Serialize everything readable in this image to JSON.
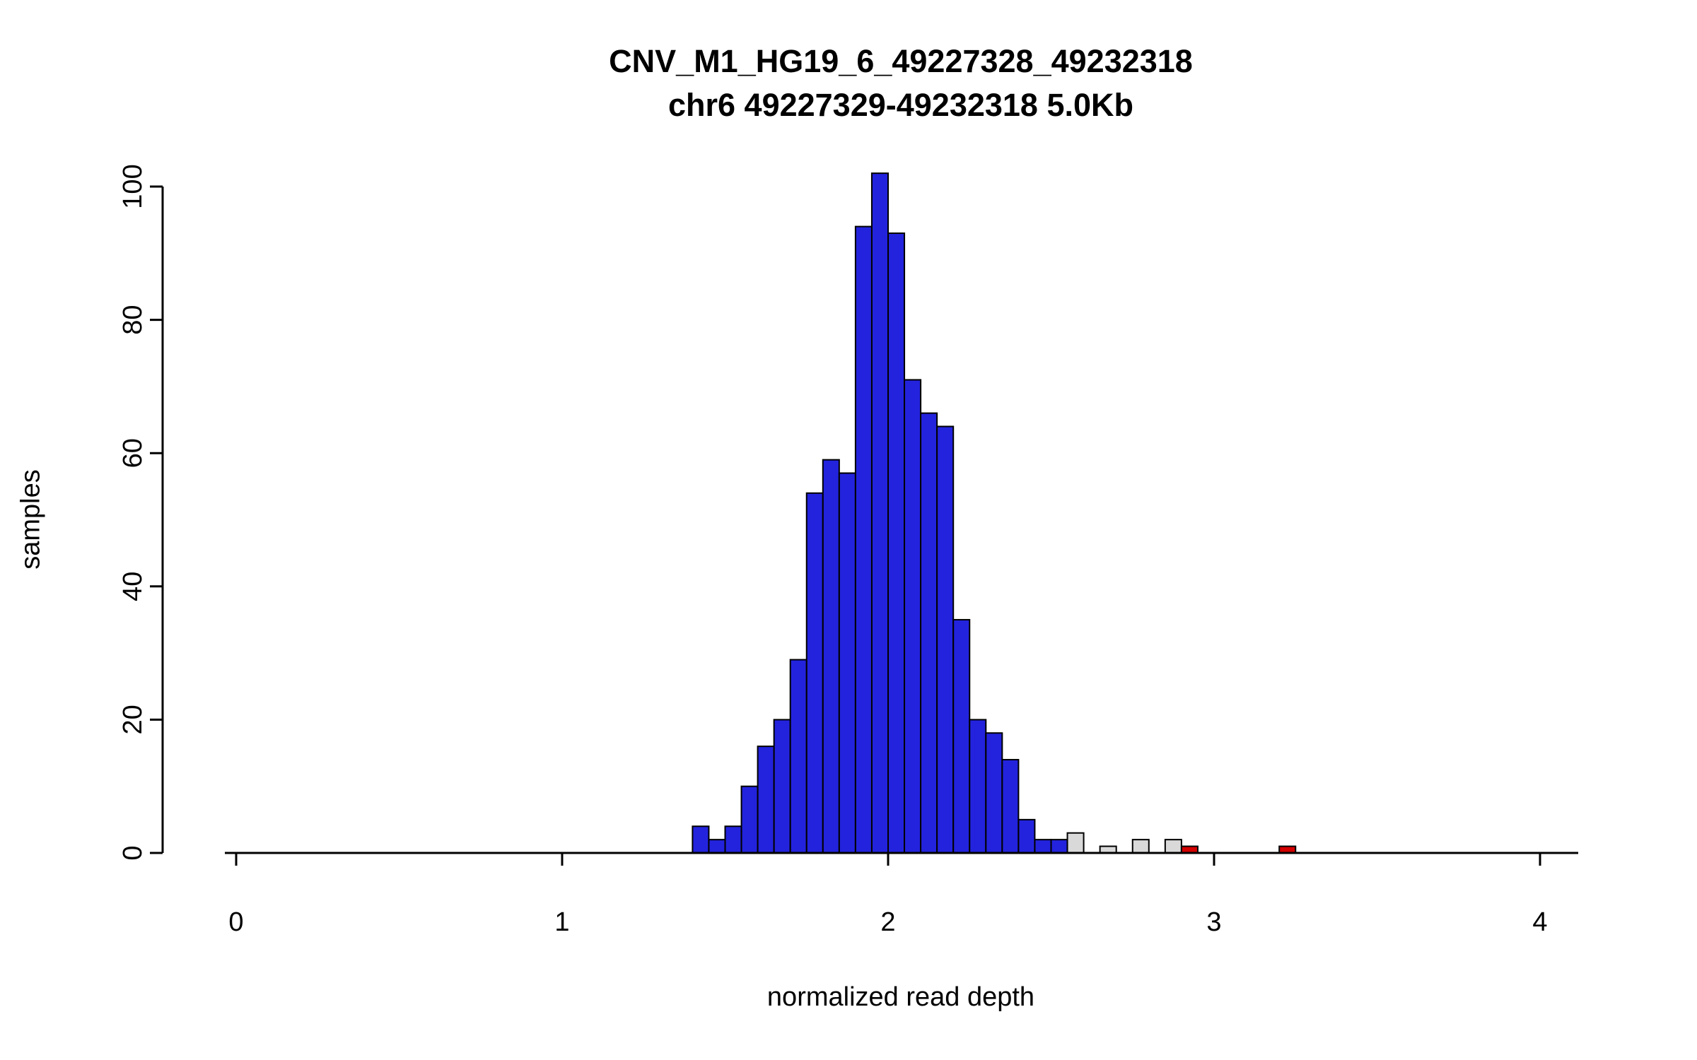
{
  "chart_data": {
    "type": "bar",
    "title": "CNV_M1_HG19_6_49227328_49232318",
    "subtitle": "chr6 49227329-49232318 5.0Kb",
    "xlabel": "normalized read depth",
    "ylabel": "samples",
    "xlim": [
      0,
      4.1
    ],
    "ylim": [
      0,
      102
    ],
    "x_ticks": [
      0,
      1,
      2,
      3,
      4
    ],
    "y_ticks": [
      0,
      20,
      40,
      60,
      80,
      100
    ],
    "bin_width": 0.05,
    "grid": false,
    "legend": "none",
    "colors": {
      "blue": "#2323dd",
      "gray": "#d9d9d9",
      "red": "#d40000",
      "axis": "#000000",
      "bar_border": "#000000"
    },
    "bars": [
      {
        "x": 1.4,
        "count": 4,
        "color": "blue"
      },
      {
        "x": 1.45,
        "count": 2,
        "color": "blue"
      },
      {
        "x": 1.5,
        "count": 4,
        "color": "blue"
      },
      {
        "x": 1.55,
        "count": 10,
        "color": "blue"
      },
      {
        "x": 1.6,
        "count": 16,
        "color": "blue"
      },
      {
        "x": 1.65,
        "count": 20,
        "color": "blue"
      },
      {
        "x": 1.7,
        "count": 29,
        "color": "blue"
      },
      {
        "x": 1.75,
        "count": 54,
        "color": "blue"
      },
      {
        "x": 1.8,
        "count": 59,
        "color": "blue"
      },
      {
        "x": 1.85,
        "count": 57,
        "color": "blue"
      },
      {
        "x": 1.9,
        "count": 94,
        "color": "blue"
      },
      {
        "x": 1.95,
        "count": 102,
        "color": "blue"
      },
      {
        "x": 2.0,
        "count": 93,
        "color": "blue"
      },
      {
        "x": 2.05,
        "count": 71,
        "color": "blue"
      },
      {
        "x": 2.1,
        "count": 66,
        "color": "blue"
      },
      {
        "x": 2.15,
        "count": 64,
        "color": "blue"
      },
      {
        "x": 2.2,
        "count": 35,
        "color": "blue"
      },
      {
        "x": 2.25,
        "count": 20,
        "color": "blue"
      },
      {
        "x": 2.3,
        "count": 18,
        "color": "blue"
      },
      {
        "x": 2.35,
        "count": 14,
        "color": "blue"
      },
      {
        "x": 2.4,
        "count": 5,
        "color": "blue"
      },
      {
        "x": 2.45,
        "count": 2,
        "color": "blue"
      },
      {
        "x": 2.5,
        "count": 2,
        "color": "blue"
      },
      {
        "x": 2.55,
        "count": 3,
        "color": "gray"
      },
      {
        "x": 2.65,
        "count": 1,
        "color": "gray"
      },
      {
        "x": 2.75,
        "count": 2,
        "color": "gray"
      },
      {
        "x": 2.85,
        "count": 2,
        "color": "gray"
      },
      {
        "x": 2.9,
        "count": 1,
        "color": "red"
      },
      {
        "x": 3.2,
        "count": 1,
        "color": "red"
      }
    ]
  }
}
